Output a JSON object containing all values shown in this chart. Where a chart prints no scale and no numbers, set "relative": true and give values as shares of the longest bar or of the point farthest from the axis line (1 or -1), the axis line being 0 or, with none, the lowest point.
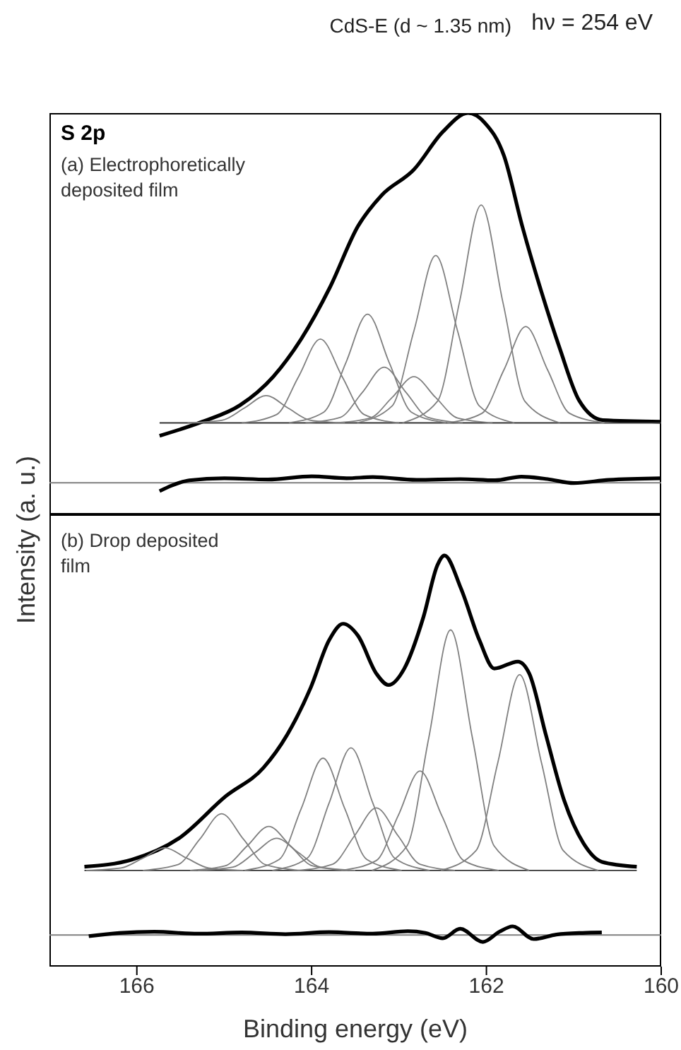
{
  "chart_data": [
    {
      "type": "line",
      "title": "CdS-E (d ~ 1.35 nm)",
      "subtitle": "hν = 254 eV",
      "ylabel": "Intensity (a. u.)",
      "annotations": [
        "S 2p",
        "(a) Electrophoretically deposited film"
      ],
      "relative": true,
      "xlim": [
        167,
        160
      ],
      "tick_labels": false,
      "legend": false,
      "grid": false,
      "marker": "none",
      "line_style": "solid",
      "ref_lines": [
        {
          "axis": "y",
          "value": 0.079,
          "color": "#808080"
        }
      ],
      "series": [
        {
          "color": "#000000",
          "x": [
            165.74,
            165.25,
            164.82,
            164.44,
            164.12,
            163.79,
            163.47,
            163.2,
            162.83,
            162.5,
            162.21,
            162.02,
            161.8,
            161.59,
            161.37,
            161.16,
            160.94,
            160.67,
            160.0
          ],
          "values": [
            0.196,
            0.231,
            0.272,
            0.343,
            0.437,
            0.566,
            0.718,
            0.795,
            0.859,
            0.953,
            1,
            0.976,
            0.894,
            0.718,
            0.554,
            0.413,
            0.284,
            0.235,
            0.231
          ]
        },
        {
          "color": "#000000",
          "x": [
            165.74,
            165.6,
            165.4,
            165.0,
            164.5,
            164.0,
            163.6,
            163.3,
            162.8,
            162.3,
            161.9,
            161.6,
            161.3,
            161.0,
            160.6,
            160.0
          ],
          "values": [
            0.058,
            0.072,
            0.085,
            0.09,
            0.087,
            0.095,
            0.09,
            0.093,
            0.086,
            0.088,
            0.085,
            0.094,
            0.088,
            0.078,
            0.086,
            0.09
          ]
        },
        {
          "color": "#333333",
          "x": [
            165.74,
            160.0
          ],
          "values": [
            0.228,
            0.228
          ]
        },
        {
          "color": "#808080",
          "x": [
            163.62,
            164.02,
            164.27,
            164.52,
            164.77,
            165.02,
            165.42
          ],
          "values": [
            0.228,
            0.235,
            0.265,
            0.296,
            0.265,
            0.235,
            0.228
          ]
        },
        {
          "color": "#808080",
          "x": [
            163.0,
            163.4,
            163.65,
            163.9,
            164.15,
            164.4,
            164.8
          ],
          "values": [
            0.228,
            0.249,
            0.343,
            0.437,
            0.343,
            0.249,
            0.228
          ]
        },
        {
          "color": "#808080",
          "x": [
            162.46,
            162.86,
            163.11,
            163.36,
            163.61,
            163.86,
            164.26
          ],
          "values": [
            0.228,
            0.255,
            0.377,
            0.499,
            0.377,
            0.255,
            0.228
          ]
        },
        {
          "color": "#808080",
          "x": [
            162.27,
            162.67,
            162.92,
            163.17,
            163.42,
            163.67,
            164.07
          ],
          "values": [
            0.228,
            0.242,
            0.304,
            0.367,
            0.304,
            0.242,
            0.228
          ]
        },
        {
          "color": "#808080",
          "x": [
            161.93,
            162.33,
            162.58,
            162.83,
            163.08,
            163.33,
            163.73
          ],
          "values": [
            0.228,
            0.24,
            0.291,
            0.343,
            0.291,
            0.24,
            0.228
          ]
        },
        {
          "color": "#808080",
          "x": [
            161.68,
            162.08,
            162.33,
            162.58,
            162.83,
            163.08,
            163.48
          ],
          "values": [
            0.228,
            0.27,
            0.457,
            0.645,
            0.457,
            0.27,
            0.228
          ]
        },
        {
          "color": "#808080",
          "x": [
            161.16,
            161.56,
            161.81,
            162.06,
            162.31,
            162.56,
            162.96
          ],
          "values": [
            0.228,
            0.282,
            0.527,
            0.771,
            0.527,
            0.282,
            0.228
          ]
        },
        {
          "color": "#808080",
          "x": [
            160.65,
            161.05,
            161.3,
            161.55,
            161.8,
            162.05,
            162.45
          ],
          "values": [
            0.228,
            0.252,
            0.36,
            0.468,
            0.36,
            0.252,
            0.228
          ]
        }
      ]
    },
    {
      "type": "line",
      "xlabel": "Binding energy (eV)",
      "annotations": [
        "(b) Drop deposited film"
      ],
      "relative": true,
      "xlim": [
        167,
        160
      ],
      "xticks": [
        166,
        164,
        162,
        160
      ],
      "tick_labels": "x",
      "legend": false,
      "grid": false,
      "marker": "none",
      "line_style": "solid",
      "ref_lines": [
        {
          "axis": "y",
          "value": 0.077,
          "color": "#808080"
        }
      ],
      "series": [
        {
          "color": "#000000",
          "x": [
            166.6,
            166.06,
            165.52,
            164.98,
            164.55,
            164.28,
            164.01,
            163.8,
            163.64,
            163.47,
            163.26,
            163.12,
            162.94,
            162.72,
            162.56,
            162.48,
            162.29,
            162.08,
            161.91,
            161.64,
            161.51,
            161.32,
            161.11,
            160.89,
            160.68,
            160.28
          ],
          "values": [
            0.243,
            0.26,
            0.312,
            0.415,
            0.484,
            0.564,
            0.679,
            0.794,
            0.834,
            0.805,
            0.713,
            0.685,
            0.725,
            0.851,
            0.977,
            1,
            0.919,
            0.794,
            0.725,
            0.742,
            0.713,
            0.564,
            0.404,
            0.3,
            0.255,
            0.243
          ]
        },
        {
          "color": "#000000",
          "x": [
            166.55,
            166.2,
            165.8,
            165.3,
            164.8,
            164.3,
            163.8,
            163.3,
            162.9,
            162.7,
            162.5,
            162.3,
            162.04,
            161.85,
            161.7,
            161.46,
            161.2,
            160.9,
            160.68
          ],
          "values": [
            0.074,
            0.082,
            0.085,
            0.08,
            0.083,
            0.079,
            0.084,
            0.08,
            0.086,
            0.082,
            0.069,
            0.092,
            0.06,
            0.085,
            0.098,
            0.067,
            0.078,
            0.082,
            0.083
          ]
        },
        {
          "color": "#333333",
          "x": [
            166.6,
            160.28
          ],
          "values": [
            0.234,
            0.234
          ]
        },
        {
          "color": "#808080",
          "x": [
            164.78,
            165.18,
            165.43,
            165.68,
            165.93,
            166.18,
            166.58
          ],
          "values": [
            0.234,
            0.24,
            0.264,
            0.289,
            0.264,
            0.24,
            0.234
          ]
        },
        {
          "color": "#808080",
          "x": [
            164.13,
            164.53,
            164.78,
            165.03,
            165.28,
            165.53,
            165.93
          ],
          "values": [
            0.234,
            0.248,
            0.31,
            0.372,
            0.31,
            0.248,
            0.234
          ]
        },
        {
          "color": "#808080",
          "x": [
            163.59,
            163.99,
            164.24,
            164.49,
            164.74,
            164.99,
            165.39
          ],
          "values": [
            0.234,
            0.245,
            0.293,
            0.341,
            0.293,
            0.245,
            0.234
          ]
        },
        {
          "color": "#808080",
          "x": [
            163.5,
            163.9,
            164.15,
            164.4,
            164.65,
            164.9,
            165.3
          ],
          "values": [
            0.234,
            0.242,
            0.277,
            0.312,
            0.277,
            0.242,
            0.234
          ]
        },
        {
          "color": "#808080",
          "x": [
            162.97,
            163.37,
            163.62,
            163.87,
            164.12,
            164.37,
            164.77
          ],
          "values": [
            0.234,
            0.261,
            0.384,
            0.507,
            0.384,
            0.261,
            0.234
          ]
        },
        {
          "color": "#808080",
          "x": [
            162.65,
            163.05,
            163.3,
            163.55,
            163.8,
            164.05,
            164.45
          ],
          "values": [
            0.234,
            0.264,
            0.398,
            0.532,
            0.398,
            0.264,
            0.234
          ]
        },
        {
          "color": "#808080",
          "x": [
            162.36,
            162.76,
            163.01,
            163.26,
            163.51,
            163.76,
            164.16
          ],
          "values": [
            0.234,
            0.249,
            0.318,
            0.386,
            0.318,
            0.249,
            0.234
          ]
        },
        {
          "color": "#808080",
          "x": [
            161.86,
            162.26,
            162.51,
            162.76,
            163.01,
            163.26,
            163.66
          ],
          "values": [
            0.234,
            0.258,
            0.367,
            0.476,
            0.367,
            0.258,
            0.234
          ]
        },
        {
          "color": "#808080",
          "x": [
            161.51,
            161.91,
            162.16,
            162.41,
            162.66,
            162.91,
            163.31
          ],
          "values": [
            0.234,
            0.293,
            0.556,
            0.819,
            0.556,
            0.293,
            0.234
          ]
        },
        {
          "color": "#808080",
          "x": [
            160.72,
            161.12,
            161.37,
            161.62,
            161.87,
            162.12,
            162.52
          ],
          "values": [
            0.234,
            0.282,
            0.496,
            0.71,
            0.496,
            0.282,
            0.234
          ]
        }
      ]
    }
  ]
}
